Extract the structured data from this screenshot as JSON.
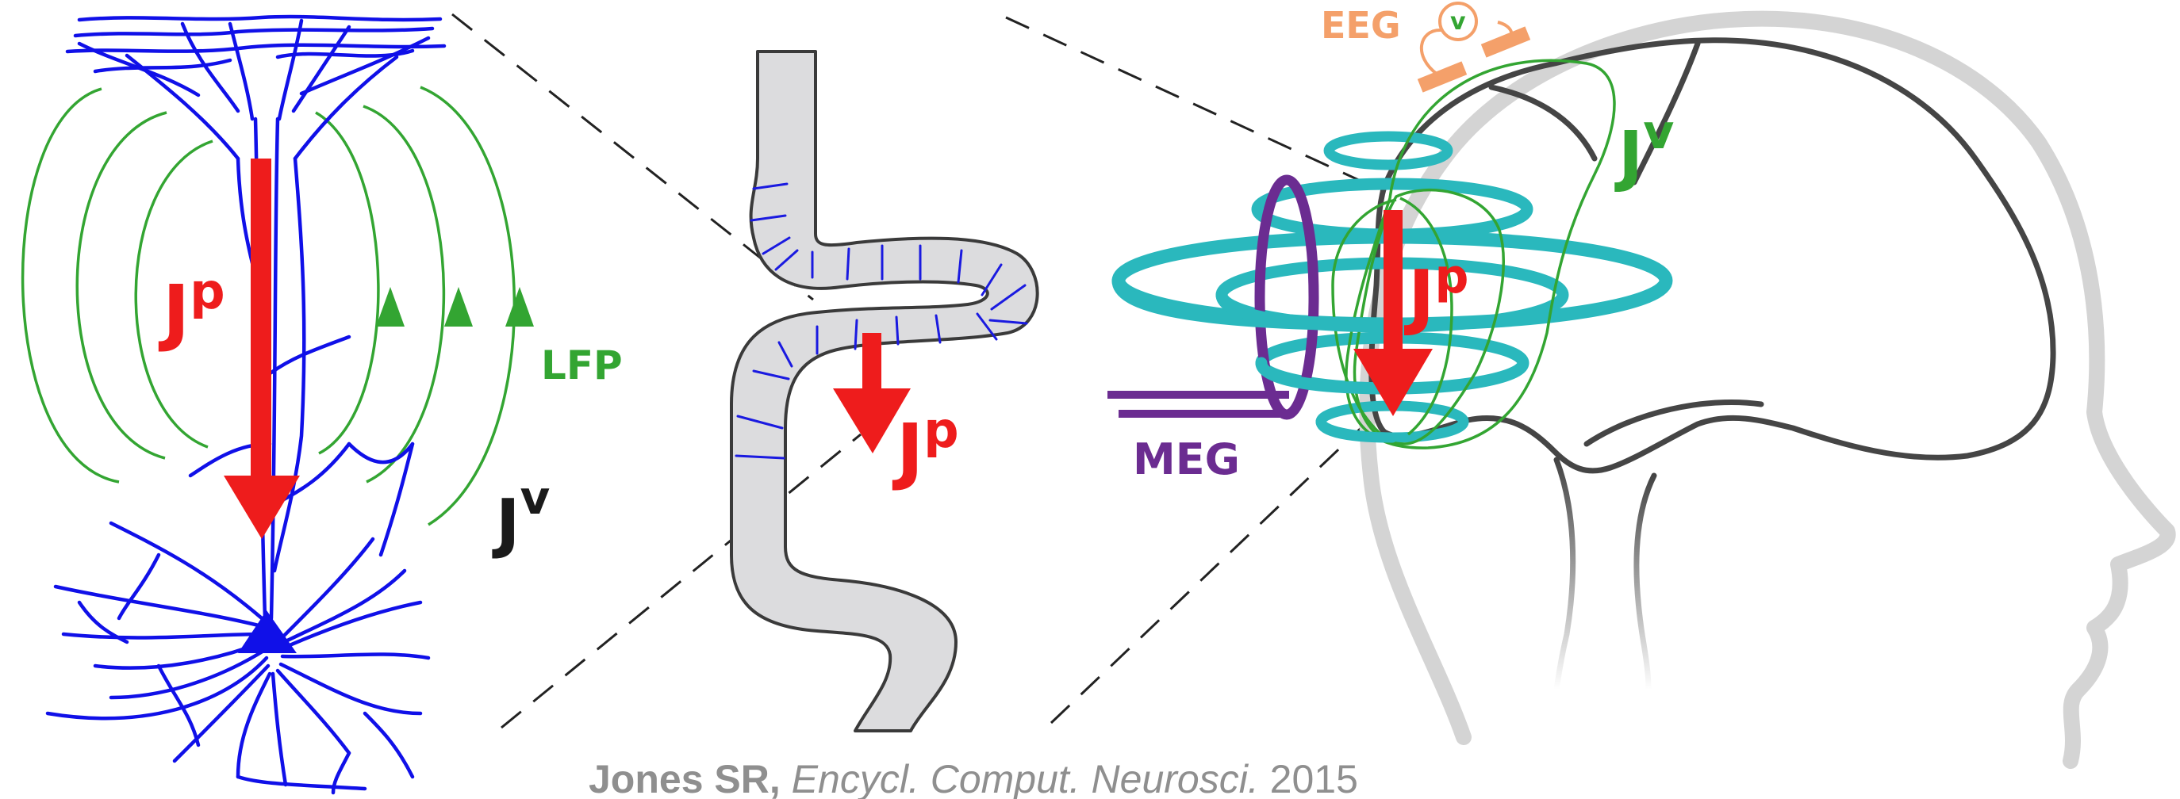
{
  "labels": {
    "jp": "J",
    "jp_sup": "p",
    "jv": "J",
    "jv_sup": "v",
    "lfp": "LFP",
    "meg": "MEG",
    "eeg": "EEG",
    "voltmeter": "v"
  },
  "citation": {
    "author": "Jones SR,",
    "journal": "Encycl. Comput. Neurosci.",
    "year": "2015"
  },
  "colors": {
    "neuron": "#1010e8",
    "primary_current": "#ee1c1c",
    "volume_current": "#33a532",
    "meg": "#6b2c91",
    "eeg": "#f4a06a",
    "magnetic_field": "#2ab8bd",
    "cortex_fill": "#dcdcde",
    "head_outline": "#d0d0d0",
    "brain_outline": "#444444"
  }
}
